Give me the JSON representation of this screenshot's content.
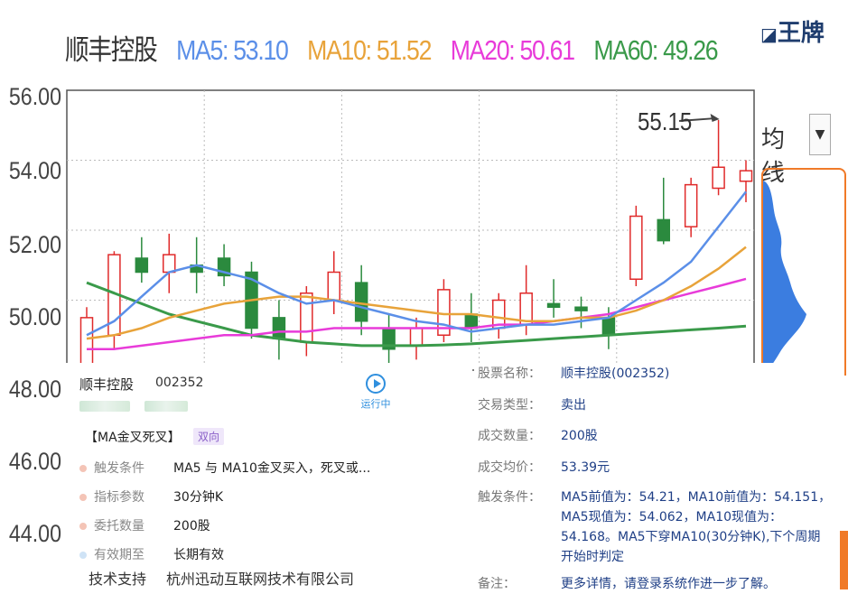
{
  "header": {
    "stock_name": "顺丰控股",
    "ma5": "MA5: 53.10",
    "ma10": "MA10: 51.52",
    "ma20": "MA20: 50.61",
    "ma60": "MA60: 49.26",
    "colors": {
      "ma5": "#5b8fe8",
      "ma10": "#e8a33a",
      "ma20": "#e83bd9",
      "ma60": "#3a9a4a"
    }
  },
  "logo": "王牌",
  "ma_select": {
    "label": "均线",
    "arrow": "▼"
  },
  "chart_data": {
    "type": "candlestick",
    "y_ticks": [
      "56.00",
      "54.00",
      "52.00",
      "50.00",
      "48.00",
      "46.00",
      "44.00"
    ],
    "ylim": [
      43,
      56
    ],
    "annotation": "55.15",
    "candles": [
      {
        "o": 47.8,
        "c": 49.5,
        "h": 49.8,
        "l": 47.0
      },
      {
        "o": 49.0,
        "c": 51.3,
        "h": 51.4,
        "l": 48.6
      },
      {
        "o": 51.2,
        "c": 50.8,
        "h": 51.8,
        "l": 50.5
      },
      {
        "o": 50.8,
        "c": 51.3,
        "h": 51.9,
        "l": 50.2
      },
      {
        "o": 51.0,
        "c": 50.8,
        "h": 51.8,
        "l": 50.2
      },
      {
        "o": 51.2,
        "c": 50.7,
        "h": 51.6,
        "l": 50.4
      },
      {
        "o": 50.8,
        "c": 49.2,
        "h": 51.1,
        "l": 48.9
      },
      {
        "o": 49.5,
        "c": 48.9,
        "h": 50.0,
        "l": 48.3
      },
      {
        "o": 48.8,
        "c": 50.2,
        "h": 50.4,
        "l": 48.4
      },
      {
        "o": 50.0,
        "c": 50.8,
        "h": 51.4,
        "l": 49.6
      },
      {
        "o": 50.5,
        "c": 49.4,
        "h": 51.0,
        "l": 49.0
      },
      {
        "o": 49.2,
        "c": 48.6,
        "h": 49.6,
        "l": 48.2
      },
      {
        "o": 48.7,
        "c": 49.2,
        "h": 49.5,
        "l": 48.3
      },
      {
        "o": 49.0,
        "c": 50.3,
        "h": 50.6,
        "l": 48.8
      },
      {
        "o": 49.6,
        "c": 49.2,
        "h": 50.2,
        "l": 48.8
      },
      {
        "o": 49.2,
        "c": 50.0,
        "h": 50.2,
        "l": 48.9
      },
      {
        "o": 49.3,
        "c": 50.2,
        "h": 51.0,
        "l": 49.0
      },
      {
        "o": 49.9,
        "c": 49.8,
        "h": 50.6,
        "l": 49.5
      },
      {
        "o": 49.8,
        "c": 49.7,
        "h": 50.1,
        "l": 49.2
      },
      {
        "o": 49.5,
        "c": 49.0,
        "h": 49.8,
        "l": 48.6
      },
      {
        "o": 50.6,
        "c": 52.4,
        "h": 52.7,
        "l": 50.4
      },
      {
        "o": 52.3,
        "c": 51.7,
        "h": 53.5,
        "l": 51.6
      },
      {
        "o": 52.1,
        "c": 53.3,
        "h": 53.5,
        "l": 51.8
      },
      {
        "o": 53.2,
        "c": 53.8,
        "h": 55.15,
        "l": 53.0
      },
      {
        "o": 53.4,
        "c": 53.7,
        "h": 54.0,
        "l": 52.8
      }
    ],
    "ma5": [
      49.0,
      49.4,
      50.1,
      50.8,
      51.0,
      50.8,
      50.6,
      50.2,
      49.9,
      50.0,
      49.8,
      49.6,
      49.4,
      49.3,
      49.1,
      49.2,
      49.3,
      49.3,
      49.4,
      49.5,
      50.0,
      50.5,
      51.1,
      52.1,
      53.1
    ],
    "ma10": [
      48.9,
      49.0,
      49.2,
      49.5,
      49.7,
      49.9,
      50.0,
      50.1,
      50.1,
      50.0,
      49.9,
      49.8,
      49.7,
      49.6,
      49.6,
      49.5,
      49.4,
      49.4,
      49.5,
      49.5,
      49.7,
      50.0,
      50.4,
      50.9,
      51.52
    ],
    "ma20": [
      48.6,
      48.6,
      48.7,
      48.8,
      48.9,
      49.0,
      49.0,
      49.1,
      49.1,
      49.2,
      49.2,
      49.2,
      49.2,
      49.2,
      49.2,
      49.3,
      49.3,
      49.4,
      49.5,
      49.6,
      49.8,
      50.0,
      50.2,
      50.4,
      50.61
    ],
    "ma60": [
      50.5,
      50.2,
      49.9,
      49.6,
      49.4,
      49.2,
      49.0,
      48.9,
      48.8,
      48.75,
      48.7,
      48.7,
      48.7,
      48.72,
      48.75,
      48.8,
      48.85,
      48.9,
      48.95,
      49.0,
      49.05,
      49.1,
      49.15,
      49.2,
      49.26
    ]
  },
  "left_card": {
    "name": "顺丰控股",
    "code": "002352",
    "run_label": "运行中",
    "strategy": "【MA金叉死叉】",
    "badge": "双向",
    "rows": [
      {
        "k": "触发条件",
        "v": "MA5 与 MA10金叉买入，死叉或..."
      },
      {
        "k": "指标参数",
        "v": "30分钟K"
      },
      {
        "k": "委托数量",
        "v": "200股"
      },
      {
        "k": "有效期至",
        "v": "长期有效"
      }
    ],
    "footer_k": "技术支持",
    "footer_v": "杭州迅动互联网技术有限公司"
  },
  "right_card": {
    "rows": [
      {
        "k": "股票名称：",
        "v": "顺丰控股(002352)"
      },
      {
        "k": "交易类型：",
        "v": "卖出"
      },
      {
        "k": "成交数量：",
        "v": "200股"
      },
      {
        "k": "成交均价：",
        "v": "53.39元"
      },
      {
        "k": "触发条件：",
        "v": "MA5前值为：54.21，MA10前值为：54.151，MA5现值为：54.062，MA10现值为：54.168。MA5下穿MA10(30分钟K),下个周期开始时判定"
      },
      {
        "k": "备注：",
        "v": "更多详情，请登录系统作进一步了解。"
      }
    ]
  }
}
